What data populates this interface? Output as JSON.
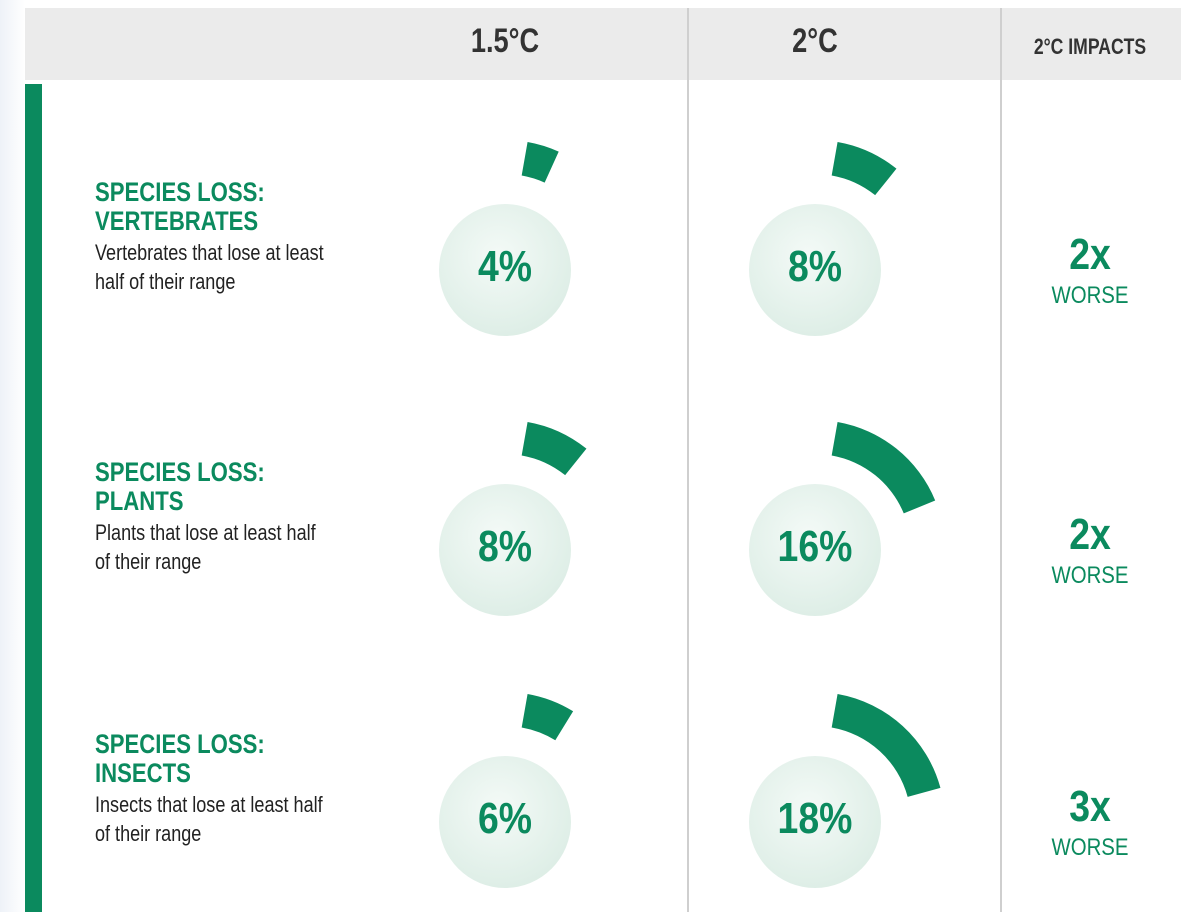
{
  "header": {
    "columns": [
      "1.5°C",
      "2°C",
      "2°C IMPACTS"
    ]
  },
  "rows": [
    {
      "title": "SPECIES LOSS:",
      "subject": "VERTEBRATES",
      "description": "Vertebrates that lose at least half of their range",
      "values": [
        4,
        8
      ],
      "value_labels": [
        "4%",
        "8%"
      ],
      "impact": "2x",
      "impact_note": "WORSE"
    },
    {
      "title": "SPECIES LOSS:",
      "subject": "PLANTS",
      "description": "Plants that lose at least half of their range",
      "values": [
        8,
        16
      ],
      "value_labels": [
        "8%",
        "16%"
      ],
      "impact": "2x",
      "impact_note": "WORSE"
    },
    {
      "title": "SPECIES LOSS:",
      "subject": "INSECTS",
      "description": "Insects that lose at least half of their range",
      "values": [
        6,
        18
      ],
      "value_labels": [
        "6%",
        "18%"
      ],
      "impact": "3x",
      "impact_note": "WORSE"
    }
  ],
  "color": "#0b8a5e"
}
